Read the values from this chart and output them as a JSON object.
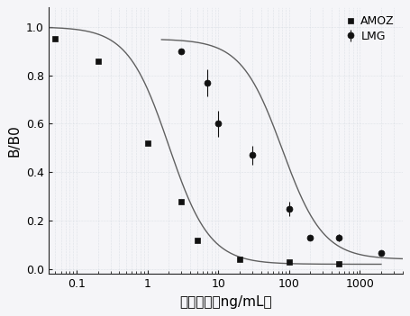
{
  "title": "",
  "xlabel": "药物浓度（ng/mL）",
  "ylabel": "B/B0",
  "background_color": "#f5f5f8",
  "amoz_x": [
    0.05,
    0.2,
    1.0,
    3.0,
    5.0,
    20.0,
    100.0,
    500.0
  ],
  "amoz_y": [
    0.95,
    0.86,
    0.52,
    0.28,
    0.12,
    0.04,
    0.03,
    0.02
  ],
  "lmg_x": [
    3.0,
    7.0,
    10.0,
    30.0,
    100.0,
    200.0,
    500.0,
    2000.0
  ],
  "lmg_y": [
    0.9,
    0.77,
    0.6,
    0.47,
    0.25,
    0.13,
    0.13,
    0.065
  ],
  "lmg_yerr": [
    0.0,
    0.055,
    0.055,
    0.04,
    0.03,
    0.0,
    0.015,
    0.0
  ],
  "ylim": [
    -0.02,
    1.08
  ],
  "xlim": [
    0.04,
    4000
  ],
  "yticks": [
    0.0,
    0.2,
    0.4,
    0.6,
    0.8,
    1.0
  ],
  "xtick_labels": [
    "0.1",
    "1",
    "10",
    "100",
    "1000"
  ],
  "xtick_vals": [
    0.1,
    1.0,
    10.0,
    100.0,
    1000.0
  ],
  "legend_labels": [
    "AMOZ",
    "LMG"
  ],
  "marker_amoz": "s",
  "marker_lmg": "o",
  "marker_size": 5,
  "marker_color": "#111111",
  "curve_color": "#606060",
  "grid_color": "#c8d0d8",
  "grid_alpha": 1.0,
  "spine_color": "#222222"
}
